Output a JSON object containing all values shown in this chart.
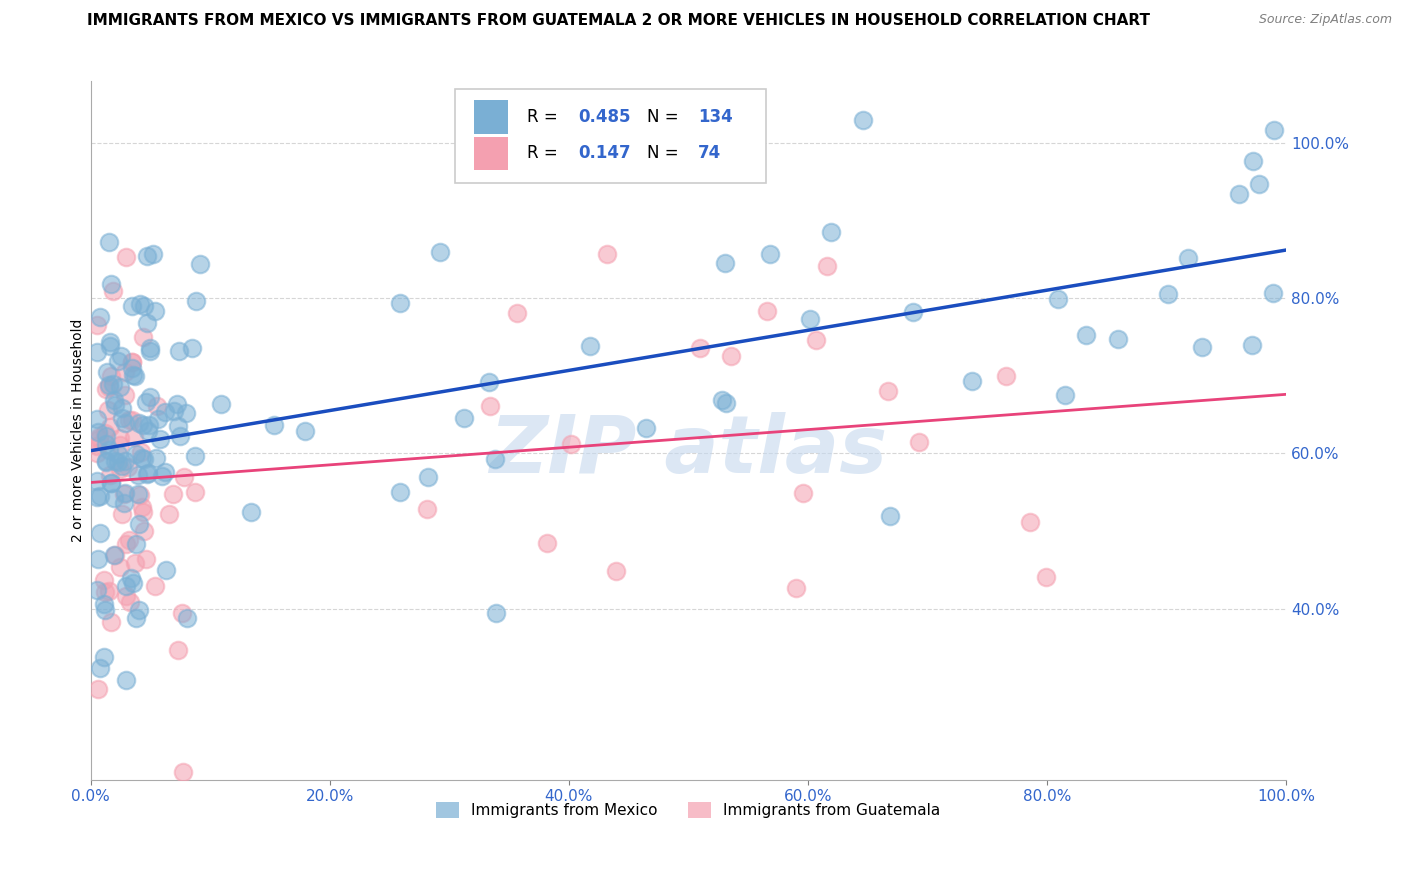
{
  "title": "IMMIGRANTS FROM MEXICO VS IMMIGRANTS FROM GUATEMALA 2 OR MORE VEHICLES IN HOUSEHOLD CORRELATION CHART",
  "source": "Source: ZipAtlas.com",
  "ylabel": "2 or more Vehicles in Household",
  "xlim": [
    0.0,
    1.0
  ],
  "ylim": [
    0.18,
    1.08
  ],
  "xtick_labels": [
    "0.0%",
    "20.0%",
    "40.0%",
    "60.0%",
    "80.0%",
    "100.0%"
  ],
  "xtick_vals": [
    0.0,
    0.2,
    0.4,
    0.6,
    0.8,
    1.0
  ],
  "ytick_labels": [
    "40.0%",
    "60.0%",
    "80.0%",
    "100.0%"
  ],
  "ytick_vals": [
    0.4,
    0.6,
    0.8,
    1.0
  ],
  "blue_color": "#7aafd4",
  "pink_color": "#f4a0b0",
  "blue_line_color": "#1a4dbf",
  "pink_line_color": "#e8437a",
  "watermark_color": "#c5d8ee",
  "label_color": "#3366cc",
  "R_blue": 0.485,
  "N_blue": 134,
  "R_pink": 0.147,
  "N_pink": 74,
  "legend_label_blue": "Immigrants from Mexico",
  "legend_label_pink": "Immigrants from Guatemala",
  "title_fontsize": 11,
  "label_fontsize": 10,
  "tick_fontsize": 11,
  "source_fontsize": 9,
  "blue_line_start_y": 0.595,
  "blue_line_end_y": 0.875,
  "pink_line_start_y": 0.555,
  "pink_line_end_y": 0.72
}
